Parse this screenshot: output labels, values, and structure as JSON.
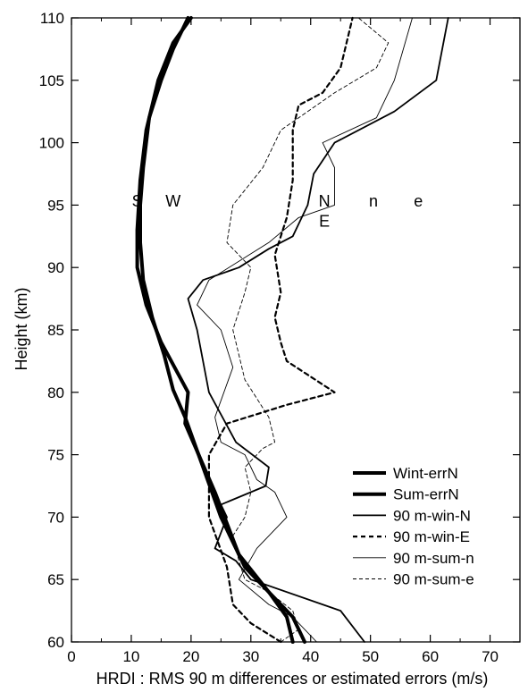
{
  "chart_data": {
    "type": "line",
    "xlabel": "HRDI : RMS 90 m differences or estimated errors (m/s)",
    "ylabel": "Height (km)",
    "xlim": [
      0,
      75
    ],
    "ylim": [
      60,
      110
    ],
    "x_ticks": [
      0,
      10,
      20,
      30,
      40,
      50,
      60,
      70
    ],
    "y_ticks": [
      60,
      65,
      70,
      75,
      80,
      85,
      90,
      95,
      100,
      105,
      110
    ],
    "grid": false,
    "legend_position": "bottom-right",
    "annotations": [
      {
        "text": "S",
        "x": 11,
        "y": 95.3
      },
      {
        "text": "W",
        "x": 17,
        "y": 95.3
      },
      {
        "text": "N",
        "x": 42.3,
        "y": 95.3
      },
      {
        "text": "E",
        "x": 42.3,
        "y": 93.7
      },
      {
        "text": "n",
        "x": 50.5,
        "y": 95.3
      },
      {
        "text": "e",
        "x": 58,
        "y": 95.3
      }
    ],
    "series": [
      {
        "name": "Wint-errN",
        "style": "thick-solid",
        "color": "#000000",
        "points": [
          [
            37,
            60
          ],
          [
            36,
            62
          ],
          [
            33,
            64
          ],
          [
            29,
            66
          ],
          [
            25,
            70
          ],
          [
            22,
            74
          ],
          [
            19,
            78
          ],
          [
            17,
            80.2
          ],
          [
            15.5,
            83
          ],
          [
            13.5,
            86
          ],
          [
            12,
            89
          ],
          [
            11.5,
            92
          ],
          [
            11.5,
            95
          ],
          [
            12,
            98
          ],
          [
            13,
            102
          ],
          [
            15,
            105
          ],
          [
            17,
            107.5
          ],
          [
            19.5,
            110
          ]
        ]
      },
      {
        "name": "Sum-errN",
        "style": "thick-solid",
        "color": "#000000",
        "points": [
          [
            39,
            60
          ],
          [
            37,
            62
          ],
          [
            33,
            64
          ],
          [
            28,
            67
          ],
          [
            24,
            72
          ],
          [
            19,
            77.5
          ],
          [
            19.5,
            80
          ],
          [
            15,
            84
          ],
          [
            12.5,
            87
          ],
          [
            11,
            90
          ],
          [
            11,
            93
          ],
          [
            11.5,
            97
          ],
          [
            12.5,
            101
          ],
          [
            14.5,
            105
          ],
          [
            17,
            108
          ],
          [
            20,
            110
          ]
        ]
      },
      {
        "name": "90 m-win-N",
        "style": "solid",
        "color": "#000000",
        "points": [
          [
            49,
            60
          ],
          [
            45,
            62.5
          ],
          [
            30,
            65
          ],
          [
            27.5,
            66.5
          ],
          [
            24,
            67.5
          ],
          [
            26,
            70
          ],
          [
            25,
            71
          ],
          [
            32.5,
            72.5
          ],
          [
            33,
            74
          ],
          [
            27.5,
            76
          ],
          [
            23,
            80
          ],
          [
            21,
            85
          ],
          [
            19.5,
            87.5
          ],
          [
            22,
            89
          ],
          [
            28,
            90
          ],
          [
            33,
            91.5
          ],
          [
            37,
            92.5
          ],
          [
            39.5,
            95
          ],
          [
            40.5,
            97.5
          ],
          [
            44,
            100
          ],
          [
            54,
            102.5
          ],
          [
            61,
            105
          ],
          [
            63,
            110
          ]
        ]
      },
      {
        "name": "90 m-win-E",
        "style": "dashed",
        "color": "#000000",
        "points": [
          [
            35,
            60
          ],
          [
            30,
            61.5
          ],
          [
            27,
            63
          ],
          [
            26,
            66
          ],
          [
            23,
            70
          ],
          [
            23,
            75
          ],
          [
            26,
            77.5
          ],
          [
            36,
            79
          ],
          [
            44,
            80
          ],
          [
            36,
            82.5
          ],
          [
            35,
            84
          ],
          [
            34,
            86
          ],
          [
            35,
            88
          ],
          [
            34,
            91
          ],
          [
            36,
            94
          ],
          [
            37,
            97
          ],
          [
            37,
            101
          ],
          [
            38,
            103
          ],
          [
            42,
            104
          ],
          [
            45,
            106
          ],
          [
            46,
            108
          ],
          [
            47,
            110
          ]
        ]
      },
      {
        "name": "90 m-sum-n",
        "style": "thin-solid",
        "color": "#000000",
        "points": [
          [
            41,
            60
          ],
          [
            37,
            62
          ],
          [
            33,
            63
          ],
          [
            28,
            65
          ],
          [
            31,
            67.5
          ],
          [
            36,
            70
          ],
          [
            35,
            71
          ],
          [
            34,
            72
          ],
          [
            31,
            73
          ],
          [
            29,
            75
          ],
          [
            25,
            76
          ],
          [
            24,
            78
          ],
          [
            27,
            82
          ],
          [
            25,
            85
          ],
          [
            21,
            87
          ],
          [
            23,
            89
          ],
          [
            33,
            92
          ],
          [
            38,
            94
          ],
          [
            44,
            95
          ],
          [
            44,
            98
          ],
          [
            42,
            100
          ],
          [
            51,
            102
          ],
          [
            54,
            105
          ],
          [
            57,
            110
          ]
        ]
      },
      {
        "name": "90 m-sum-e",
        "style": "thin-dashed",
        "color": "#000000",
        "points": [
          [
            35,
            60
          ],
          [
            38,
            61
          ],
          [
            37,
            62.5
          ],
          [
            33,
            64
          ],
          [
            29,
            65
          ],
          [
            28,
            66.5
          ],
          [
            27,
            68.5
          ],
          [
            29,
            70
          ],
          [
            30,
            72
          ],
          [
            29,
            74
          ],
          [
            32,
            75.5
          ],
          [
            34,
            76
          ],
          [
            33,
            78
          ],
          [
            29,
            81
          ],
          [
            27,
            85
          ],
          [
            29,
            88
          ],
          [
            30,
            90
          ],
          [
            26,
            92
          ],
          [
            27,
            95
          ],
          [
            32,
            98
          ],
          [
            35,
            101
          ],
          [
            44,
            104
          ],
          [
            51,
            106
          ],
          [
            53,
            108
          ],
          [
            48,
            110
          ]
        ]
      }
    ],
    "legend": [
      {
        "label": "Wint-errN",
        "style": "thick-solid"
      },
      {
        "label": "Sum-errN",
        "style": "thick-solid"
      },
      {
        "label": "90 m-win-N",
        "style": "solid"
      },
      {
        "label": "90 m-win-E",
        "style": "dashed"
      },
      {
        "label": "90 m-sum-n",
        "style": "thin-solid"
      },
      {
        "label": "90 m-sum-e",
        "style": "thin-dashed"
      }
    ]
  }
}
